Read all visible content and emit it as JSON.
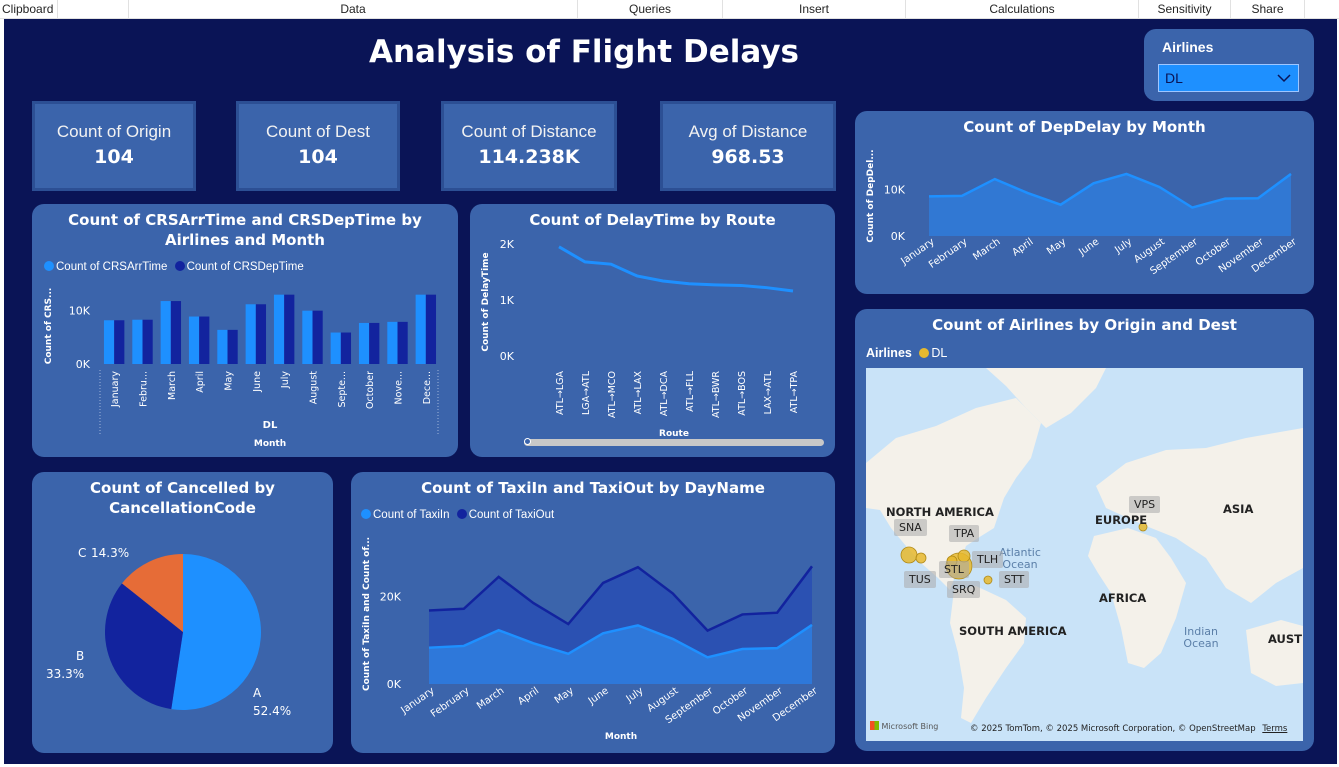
{
  "ribbon": {
    "groups": [
      "Clipboard",
      "Data",
      "Queries",
      "Insert",
      "Calculations",
      "Sensitivity",
      "Share"
    ]
  },
  "dashboard": {
    "title": "Analysis of Flight Delays",
    "slicer": {
      "title": "Airlines",
      "value": "DL",
      "icon": "chevron-down-icon"
    }
  },
  "kpis": [
    {
      "label": "Count of Origin",
      "value": "104"
    },
    {
      "label": "Count of Dest",
      "value": "104"
    },
    {
      "label": "Count of Distance",
      "value": "114.238K"
    },
    {
      "label": "Avg of Distance",
      "value": "968.53"
    }
  ],
  "colors": {
    "background": "#0a1456",
    "panel": "#3b64ab",
    "series_light": "#1e90ff",
    "series_dark": "#12239e",
    "pie_orange": "#e66c37",
    "bubble": "#e6b92e"
  },
  "chart_data": [
    {
      "id": "arr-dep",
      "type": "bar",
      "title": "Count of CRSArrTime and CRSDepTime by Airlines and Month",
      "xlabel": "Month",
      "group_label": "DL",
      "ylabel": "Count of CRS...",
      "yticks": [
        "0K",
        "10K"
      ],
      "ylim": [
        0,
        15000
      ],
      "categories": [
        "January",
        "Febru...",
        "March",
        "April",
        "May",
        "June",
        "July",
        "August",
        "Septe...",
        "October",
        "Nove...",
        "Dece..."
      ],
      "series": [
        {
          "name": "Count of CRSArrTime",
          "values": [
            8200,
            8300,
            11800,
            8900,
            6400,
            11200,
            13000,
            10000,
            5900,
            7700,
            7900,
            13000
          ]
        },
        {
          "name": "Count of CRSDepTime",
          "values": [
            8200,
            8300,
            11800,
            8900,
            6400,
            11200,
            13000,
            10000,
            5900,
            7700,
            7900,
            13000
          ]
        }
      ]
    },
    {
      "id": "route",
      "type": "line",
      "title": "Count of DelayTime by Route",
      "xlabel": "Route",
      "ylabel": "Count of DelayTime",
      "yticks": [
        "0K",
        "1K",
        "2K"
      ],
      "ylim": [
        0,
        2000
      ],
      "categories": [
        "ATL→LGA",
        "LGA→ATL",
        "ATL→MCO",
        "ATL→LAX",
        "ATL→DCA",
        "ATL→FLL",
        "ATL→BWR",
        "ATL→BOS",
        "LAX→ATL",
        "ATL→TPA"
      ],
      "series": [
        {
          "values": [
            1950,
            1680,
            1640,
            1430,
            1340,
            1290,
            1270,
            1260,
            1220,
            1160
          ]
        }
      ]
    },
    {
      "id": "depdelay",
      "type": "area",
      "title": "Count of DepDelay by Month",
      "xlabel": "",
      "ylabel": "Count of DepDel...",
      "yticks": [
        "0K",
        "10K"
      ],
      "ylim": [
        0,
        15000
      ],
      "categories": [
        "January",
        "February",
        "March",
        "April",
        "May",
        "June",
        "July",
        "August",
        "September",
        "October",
        "November",
        "December"
      ],
      "series": [
        {
          "values": [
            8500,
            8600,
            12200,
            9200,
            6700,
            11300,
            13300,
            10500,
            6100,
            8000,
            8100,
            13300
          ]
        }
      ]
    },
    {
      "id": "cancelled",
      "type": "pie",
      "title": "Count of Cancelled by CancellationCode",
      "slices": [
        {
          "label": "A",
          "value": 52.4,
          "text": "52.4%"
        },
        {
          "label": "B",
          "value": 33.3,
          "text": "33.3%"
        },
        {
          "label": "C",
          "value": 14.3,
          "text": "14.3%"
        }
      ]
    },
    {
      "id": "taxi",
      "type": "area",
      "title": "Count of TaxiIn and TaxiOut by DayName",
      "xlabel": "Month",
      "ylabel": "Count of TaxiIn and Count of...",
      "yticks": [
        "0K",
        "20K"
      ],
      "ylim": [
        0,
        32000
      ],
      "categories": [
        "January",
        "February",
        "March",
        "April",
        "May",
        "June",
        "July",
        "August",
        "September",
        "October",
        "November",
        "December"
      ],
      "series": [
        {
          "name": "Count of TaxiIn",
          "values": [
            8300,
            8700,
            12300,
            9300,
            6900,
            11600,
            13400,
            10300,
            6100,
            8000,
            8200,
            13500
          ]
        },
        {
          "name": "Count of TaxiOut",
          "values": [
            16800,
            17200,
            24500,
            18500,
            13700,
            23100,
            26700,
            20700,
            12200,
            15900,
            16300,
            26900
          ]
        }
      ]
    }
  ],
  "map": {
    "title": "Count of Airlines by Origin and Dest",
    "legend_title": "Airlines",
    "legend_item": "DL",
    "regions": [
      "NORTH AMERICA",
      "EUROPE",
      "ASIA",
      "AFRICA",
      "SOUTH AMERICA",
      "AUSTRA"
    ],
    "oceans": [
      "Atlantic Ocean",
      "Indian Ocean"
    ],
    "cities": [
      "SNA",
      "TPA",
      "TLH",
      "STL",
      "TUS",
      "SRQ",
      "STT",
      "VPS"
    ],
    "attribution": "© 2025 TomTom, © 2025 Microsoft Corporation, © OpenStreetMap",
    "terms": "Terms",
    "logo": "Microsoft Bing"
  }
}
